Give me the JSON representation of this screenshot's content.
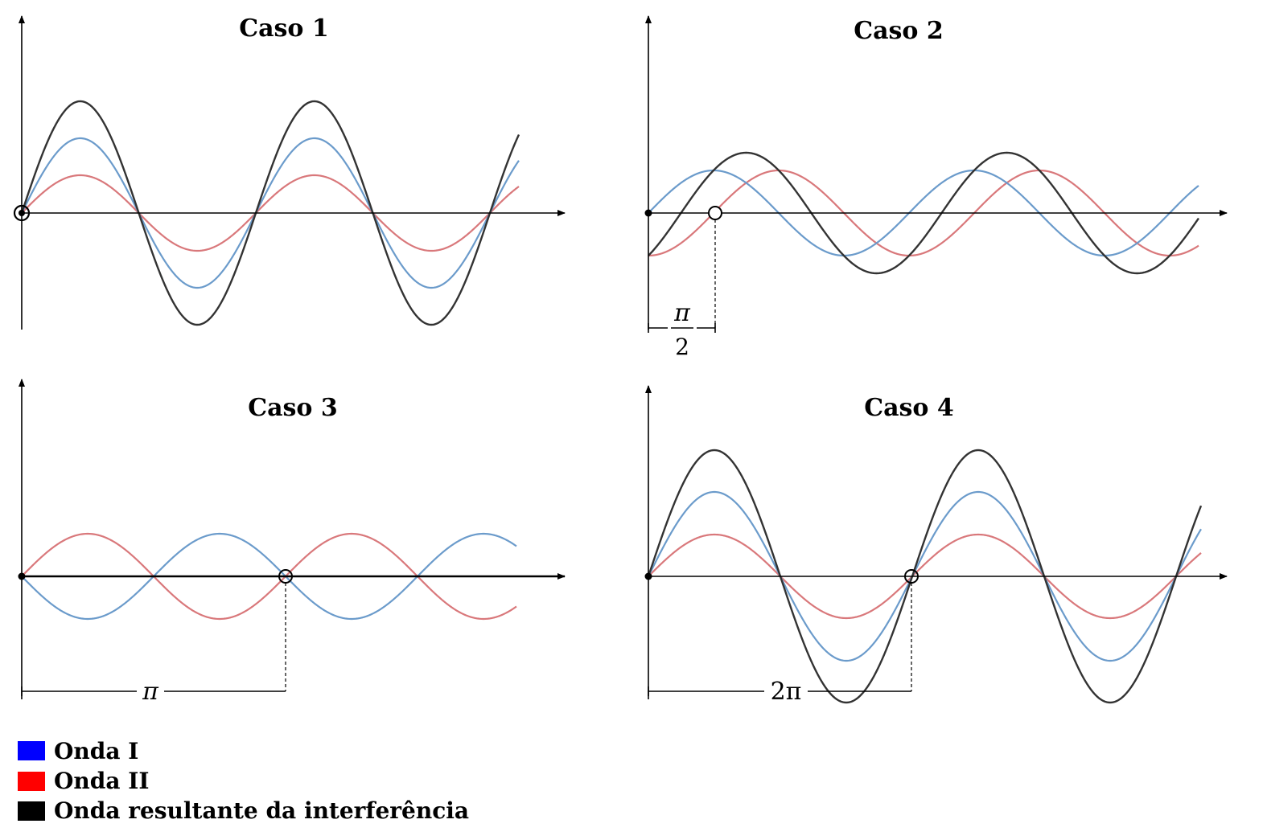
{
  "panels": [
    {
      "title": "Caso 1"
    },
    {
      "title": "Caso 2",
      "phase_label": {
        "numerator": "π",
        "denominator": "2"
      }
    },
    {
      "title": "Caso 3",
      "phase_label": "π"
    },
    {
      "title": "Caso 4",
      "phase_label": "2π"
    }
  ],
  "legend": [
    {
      "label": "Onda I",
      "color": "#0000ff"
    },
    {
      "label": "Onda II",
      "color": "#ff0000"
    },
    {
      "label": "Onda resultante da interferência",
      "color": "#000000"
    }
  ]
}
